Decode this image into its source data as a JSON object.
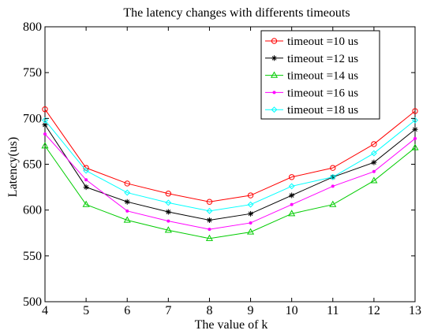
{
  "chart_data": {
    "type": "line",
    "title": "The latency changes with differents timeouts",
    "xlabel": "The value of k",
    "ylabel": "Latency(us)",
    "xlim": [
      4,
      13
    ],
    "ylim": [
      500,
      800
    ],
    "x": [
      4,
      5,
      6,
      7,
      8,
      9,
      10,
      11,
      12,
      13
    ],
    "xticks": [
      "4",
      "5",
      "6",
      "7",
      "8",
      "9",
      "10",
      "11",
      "12",
      "13"
    ],
    "yticks": [
      "500",
      "550",
      "600",
      "650",
      "700",
      "750",
      "800"
    ],
    "grid": false,
    "legend_position": "top-right",
    "series": [
      {
        "name": "timeout =10 us",
        "color": "#ff0000",
        "marker": "circle",
        "values": [
          710,
          646,
          629,
          618,
          609,
          616,
          636,
          646,
          672,
          708
        ]
      },
      {
        "name": "timeout =12 us",
        "color": "#000000",
        "marker": "star",
        "values": [
          693,
          625,
          609,
          598,
          589,
          596,
          616,
          636,
          652,
          688
        ]
      },
      {
        "name": "timeout =14 us",
        "color": "#00cc00",
        "marker": "triangle",
        "values": [
          670,
          606,
          589,
          578,
          569,
          576,
          596,
          606,
          632,
          668
        ]
      },
      {
        "name": "timeout =16 us",
        "color": "#ff00ff",
        "marker": "dot",
        "values": [
          683,
          633,
          599,
          588,
          579,
          586,
          606,
          626,
          642,
          678
        ]
      },
      {
        "name": "timeout =18 us",
        "color": "#00ffff",
        "marker": "diamond",
        "values": [
          698,
          643,
          619,
          608,
          599,
          606,
          626,
          636,
          662,
          698
        ]
      }
    ]
  }
}
